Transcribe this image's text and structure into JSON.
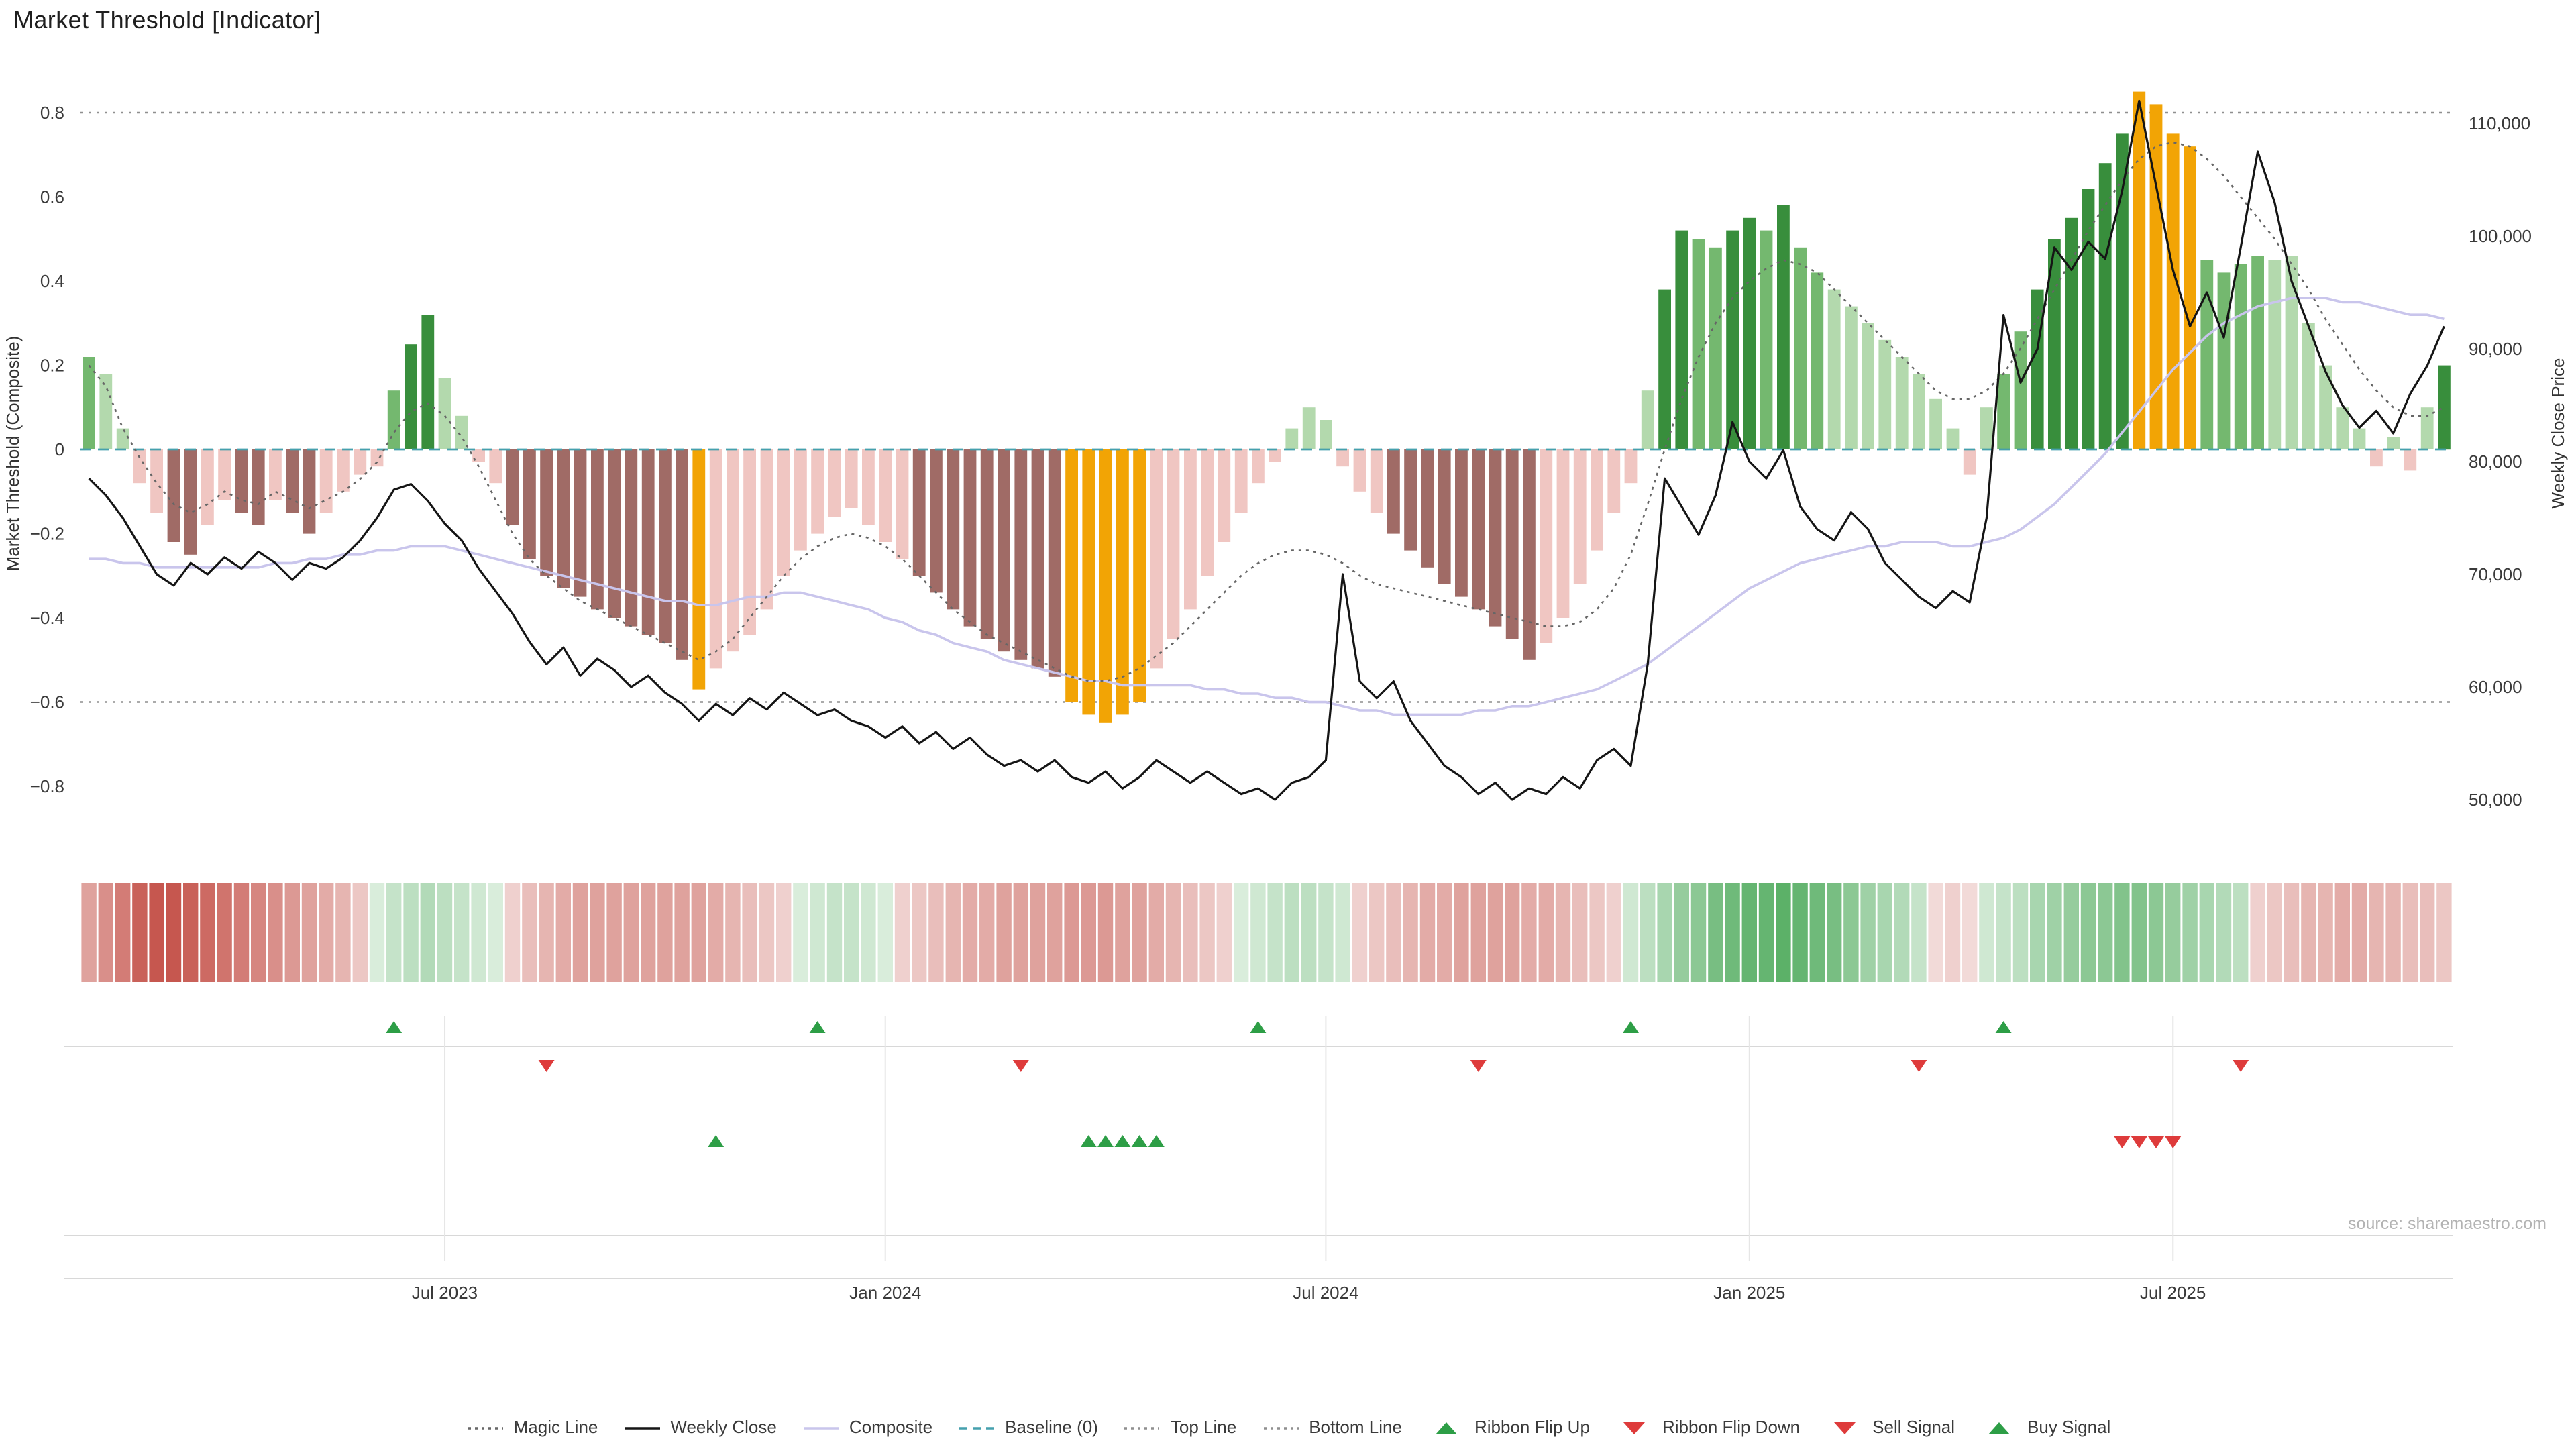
{
  "title": "Market Threshold [Indicator]",
  "source": "source: sharemaestro.com",
  "axes": {
    "left_title": "Market Threshold (Composite)",
    "right_title": "Weekly Close Price"
  },
  "colors": {
    "palette": {
      "G1": "#b3d9ad",
      "G2": "#74b86f",
      "G3": "#388e3c",
      "P1": "#f0c6c2",
      "P2": "#a06b66",
      "O": "#f2a405"
    },
    "weekly_close": "#151515",
    "composite": "#c9c5ec",
    "magic_line": "#666666",
    "baseline": "#45a0ad",
    "ref_line": "#8f8f8f",
    "grid": "#d8d8d8",
    "grid_light": "#e6e6e6",
    "signal_green": "#2d9e46",
    "signal_red": "#de3b3b",
    "ribbon_red": "#c0453c",
    "ribbon_green": "#3fa34d"
  },
  "legend": [
    {
      "label": "Magic Line",
      "marker": "dotted",
      "color": "#666666"
    },
    {
      "label": "Weekly Close",
      "marker": "solid",
      "color": "#151515"
    },
    {
      "label": "Composite",
      "marker": "solid",
      "color": "#c9c5ec"
    },
    {
      "label": "Baseline (0)",
      "marker": "dashed",
      "color": "#45a0ad"
    },
    {
      "label": "Top Line",
      "marker": "dotted",
      "color": "#8f8f8f"
    },
    {
      "label": "Bottom Line",
      "marker": "dotted",
      "color": "#8f8f8f"
    },
    {
      "label": "Ribbon Flip Up",
      "marker": "triangle-up",
      "color": "#2d9e46"
    },
    {
      "label": "Ribbon Flip Down",
      "marker": "triangle-down",
      "color": "#de3b3b"
    },
    {
      "label": "Sell Signal",
      "marker": "triangle-down",
      "color": "#de3b3b"
    },
    {
      "label": "Buy Signal",
      "marker": "triangle-up",
      "color": "#2d9e46"
    }
  ],
  "chart_data": {
    "type": "combo-bar-line",
    "title": "Market Threshold [Indicator]",
    "left_axis": {
      "title": "Market Threshold (Composite)",
      "range": [
        -0.9,
        0.94
      ]
    },
    "right_axis": {
      "title": "Weekly Close Price",
      "range": [
        48000,
        113000
      ]
    },
    "left_ticks": [
      {
        "v": 0.8,
        "label": "0.8"
      },
      {
        "v": 0.6,
        "label": "0.6"
      },
      {
        "v": 0.4,
        "label": "0.4"
      },
      {
        "v": 0.2,
        "label": "0.2"
      },
      {
        "v": 0.0,
        "label": "0"
      },
      {
        "v": -0.2,
        "label": "−0.2"
      },
      {
        "v": -0.4,
        "label": "−0.4"
      },
      {
        "v": -0.6,
        "label": "−0.6"
      },
      {
        "v": -0.8,
        "label": "−0.8"
      }
    ],
    "right_ticks": [
      {
        "v": 110000,
        "label": "110,000"
      },
      {
        "v": 100000,
        "label": "100,000"
      },
      {
        "v": 90000,
        "label": "90,000"
      },
      {
        "v": 80000,
        "label": "80,000"
      },
      {
        "v": 70000,
        "label": "70,000"
      },
      {
        "v": 60000,
        "label": "60,000"
      },
      {
        "v": 50000,
        "label": "50,000"
      }
    ],
    "x_ticks": [
      {
        "i": 21,
        "label": "Jul 2023"
      },
      {
        "i": 47,
        "label": "Jan 2024"
      },
      {
        "i": 73,
        "label": "Jul 2024"
      },
      {
        "i": 98,
        "label": "Jan 2025"
      },
      {
        "i": 123,
        "label": "Jul 2025"
      }
    ],
    "reference_lines": {
      "top_line": 0.8,
      "bottom_line": -0.6,
      "baseline": 0
    },
    "threshold_bars": {
      "values": [
        0.22,
        0.18,
        0.05,
        -0.08,
        -0.15,
        -0.22,
        -0.25,
        -0.18,
        -0.12,
        -0.15,
        -0.18,
        -0.12,
        -0.15,
        -0.2,
        -0.15,
        -0.1,
        -0.06,
        -0.04,
        0.14,
        0.25,
        0.32,
        0.17,
        0.08,
        -0.03,
        -0.08,
        -0.18,
        -0.26,
        -0.3,
        -0.33,
        -0.35,
        -0.38,
        -0.4,
        -0.42,
        -0.44,
        -0.46,
        -0.5,
        -0.57,
        -0.52,
        -0.48,
        -0.44,
        -0.38,
        -0.3,
        -0.24,
        -0.2,
        -0.16,
        -0.14,
        -0.18,
        -0.22,
        -0.26,
        -0.3,
        -0.34,
        -0.38,
        -0.42,
        -0.45,
        -0.48,
        -0.5,
        -0.52,
        -0.54,
        -0.6,
        -0.63,
        -0.65,
        -0.63,
        -0.6,
        -0.52,
        -0.45,
        -0.38,
        -0.3,
        -0.22,
        -0.15,
        -0.08,
        -0.03,
        0.05,
        0.1,
        0.07,
        -0.04,
        -0.1,
        -0.15,
        -0.2,
        -0.24,
        -0.28,
        -0.32,
        -0.35,
        -0.38,
        -0.42,
        -0.45,
        -0.5,
        -0.46,
        -0.4,
        -0.32,
        -0.24,
        -0.15,
        -0.08,
        0.14,
        0.38,
        0.52,
        0.5,
        0.48,
        0.52,
        0.55,
        0.52,
        0.58,
        0.48,
        0.42,
        0.38,
        0.34,
        0.3,
        0.26,
        0.22,
        0.18,
        0.12,
        0.05,
        -0.06,
        0.1,
        0.18,
        0.28,
        0.38,
        0.5,
        0.55,
        0.62,
        0.68,
        0.75,
        0.85,
        0.82,
        0.75,
        0.72,
        0.45,
        0.42,
        0.44,
        0.46,
        0.45,
        0.46,
        0.3,
        0.2,
        0.1,
        0.05,
        -0.04,
        0.03,
        -0.05,
        0.1,
        0.2
      ],
      "colors": [
        "G2",
        "G1",
        "G1",
        "P1",
        "P1",
        "P2",
        "P2",
        "P1",
        "P1",
        "P2",
        "P2",
        "P1",
        "P2",
        "P2",
        "P1",
        "P1",
        "P1",
        "P1",
        "G2",
        "G3",
        "G3",
        "G1",
        "G1",
        "P1",
        "P1",
        "P2",
        "P2",
        "P2",
        "P2",
        "P2",
        "P2",
        "P2",
        "P2",
        "P2",
        "P2",
        "P2",
        "O",
        "P1",
        "P1",
        "P1",
        "P1",
        "P1",
        "P1",
        "P1",
        "P1",
        "P1",
        "P1",
        "P1",
        "P1",
        "P2",
        "P2",
        "P2",
        "P2",
        "P2",
        "P2",
        "P2",
        "P2",
        "P2",
        "O",
        "O",
        "O",
        "O",
        "O",
        "P1",
        "P1",
        "P1",
        "P1",
        "P1",
        "P1",
        "P1",
        "P1",
        "G1",
        "G1",
        "G1",
        "P1",
        "P1",
        "P1",
        "P2",
        "P2",
        "P2",
        "P2",
        "P2",
        "P2",
        "P2",
        "P2",
        "P2",
        "P1",
        "P1",
        "P1",
        "P1",
        "P1",
        "P1",
        "G1",
        "G3",
        "G3",
        "G2",
        "G2",
        "G3",
        "G3",
        "G2",
        "G3",
        "G2",
        "G2",
        "G1",
        "G1",
        "G1",
        "G1",
        "G1",
        "G1",
        "G1",
        "G1",
        "P1",
        "G1",
        "G2",
        "G2",
        "G3",
        "G3",
        "G3",
        "G3",
        "G3",
        "G3",
        "O",
        "O",
        "O",
        "O",
        "G2",
        "G2",
        "G2",
        "G2",
        "G1",
        "G1",
        "G1",
        "G1",
        "G1",
        "G1",
        "P1",
        "G1",
        "P1",
        "G1",
        "G3"
      ]
    },
    "weekly_close": [
      78500,
      77000,
      75000,
      72500,
      70000,
      69000,
      71000,
      70000,
      71500,
      70500,
      72000,
      71000,
      69500,
      71000,
      70500,
      71500,
      73000,
      75000,
      77500,
      78000,
      76500,
      74500,
      73000,
      70500,
      68500,
      66500,
      64000,
      62000,
      63500,
      61000,
      62500,
      61500,
      60000,
      61000,
      59500,
      58500,
      57000,
      58500,
      57500,
      59000,
      58000,
      59500,
      58500,
      57500,
      58000,
      57000,
      56500,
      55500,
      56500,
      55000,
      56000,
      54500,
      55500,
      54000,
      53000,
      53500,
      52500,
      53500,
      52000,
      51500,
      52500,
      51000,
      52000,
      53500,
      52500,
      51500,
      52500,
      51500,
      50500,
      51000,
      50000,
      51500,
      52000,
      53500,
      70000,
      60500,
      59000,
      60500,
      57000,
      55000,
      53000,
      52000,
      50500,
      51500,
      50000,
      51000,
      50500,
      52000,
      51000,
      53500,
      54500,
      53000,
      62000,
      78500,
      76000,
      73500,
      77000,
      83500,
      80000,
      78500,
      81000,
      76000,
      74000,
      73000,
      75500,
      74000,
      71000,
      69500,
      68000,
      67000,
      68500,
      67500,
      75000,
      93000,
      87000,
      90000,
      99000,
      97000,
      99500,
      98000,
      104000,
      112000,
      104500,
      97000,
      92000,
      95000,
      91000,
      99000,
      107500,
      103000,
      96000,
      92000,
      88000,
      85000,
      83000,
      84500,
      82500,
      86000,
      88500,
      92000
    ],
    "composite": [
      -0.26,
      -0.26,
      -0.27,
      -0.27,
      -0.28,
      -0.28,
      -0.28,
      -0.28,
      -0.28,
      -0.28,
      -0.28,
      -0.27,
      -0.27,
      -0.26,
      -0.26,
      -0.25,
      -0.25,
      -0.24,
      -0.24,
      -0.23,
      -0.23,
      -0.23,
      -0.24,
      -0.25,
      -0.26,
      -0.27,
      -0.28,
      -0.29,
      -0.3,
      -0.31,
      -0.32,
      -0.33,
      -0.34,
      -0.35,
      -0.36,
      -0.36,
      -0.37,
      -0.37,
      -0.36,
      -0.35,
      -0.35,
      -0.34,
      -0.34,
      -0.35,
      -0.36,
      -0.37,
      -0.38,
      -0.4,
      -0.41,
      -0.43,
      -0.44,
      -0.46,
      -0.47,
      -0.48,
      -0.5,
      -0.51,
      -0.52,
      -0.53,
      -0.54,
      -0.55,
      -0.55,
      -0.56,
      -0.56,
      -0.56,
      -0.56,
      -0.56,
      -0.57,
      -0.57,
      -0.58,
      -0.58,
      -0.59,
      -0.59,
      -0.6,
      -0.6,
      -0.61,
      -0.62,
      -0.62,
      -0.63,
      -0.63,
      -0.63,
      -0.63,
      -0.63,
      -0.62,
      -0.62,
      -0.61,
      -0.61,
      -0.6,
      -0.59,
      -0.58,
      -0.57,
      -0.55,
      -0.53,
      -0.51,
      -0.48,
      -0.45,
      -0.42,
      -0.39,
      -0.36,
      -0.33,
      -0.31,
      -0.29,
      -0.27,
      -0.26,
      -0.25,
      -0.24,
      -0.23,
      -0.23,
      -0.22,
      -0.22,
      -0.22,
      -0.23,
      -0.23,
      -0.22,
      -0.21,
      -0.19,
      -0.16,
      -0.13,
      -0.09,
      -0.05,
      -0.01,
      0.04,
      0.09,
      0.14,
      0.19,
      0.23,
      0.27,
      0.3,
      0.32,
      0.34,
      0.35,
      0.36,
      0.36,
      0.36,
      0.35,
      0.35,
      0.34,
      0.33,
      0.32,
      0.32,
      0.31
    ],
    "magic_line": [
      0.2,
      0.15,
      0.05,
      -0.02,
      -0.08,
      -0.13,
      -0.15,
      -0.13,
      -0.1,
      -0.12,
      -0.13,
      -0.1,
      -0.12,
      -0.14,
      -0.12,
      -0.1,
      -0.07,
      -0.03,
      0.04,
      0.09,
      0.11,
      0.08,
      0.03,
      -0.04,
      -0.12,
      -0.2,
      -0.26,
      -0.3,
      -0.33,
      -0.36,
      -0.38,
      -0.4,
      -0.42,
      -0.44,
      -0.46,
      -0.48,
      -0.5,
      -0.48,
      -0.45,
      -0.4,
      -0.35,
      -0.3,
      -0.26,
      -0.23,
      -0.21,
      -0.2,
      -0.21,
      -0.23,
      -0.26,
      -0.3,
      -0.34,
      -0.38,
      -0.41,
      -0.44,
      -0.46,
      -0.48,
      -0.5,
      -0.52,
      -0.54,
      -0.55,
      -0.55,
      -0.54,
      -0.52,
      -0.49,
      -0.46,
      -0.42,
      -0.38,
      -0.34,
      -0.3,
      -0.27,
      -0.25,
      -0.24,
      -0.24,
      -0.25,
      -0.27,
      -0.3,
      -0.32,
      -0.33,
      -0.34,
      -0.35,
      -0.36,
      -0.37,
      -0.38,
      -0.39,
      -0.4,
      -0.41,
      -0.42,
      -0.42,
      -0.41,
      -0.38,
      -0.33,
      -0.25,
      -0.13,
      0.0,
      0.12,
      0.22,
      0.3,
      0.36,
      0.4,
      0.43,
      0.45,
      0.44,
      0.42,
      0.38,
      0.34,
      0.3,
      0.26,
      0.22,
      0.18,
      0.14,
      0.12,
      0.12,
      0.14,
      0.18,
      0.24,
      0.31,
      0.38,
      0.45,
      0.52,
      0.58,
      0.64,
      0.69,
      0.72,
      0.73,
      0.72,
      0.69,
      0.65,
      0.6,
      0.55,
      0.5,
      0.44,
      0.38,
      0.31,
      0.25,
      0.19,
      0.14,
      0.1,
      0.08,
      0.08,
      0.1
    ],
    "ribbon": [
      -0.5,
      -0.6,
      -0.7,
      -0.85,
      -0.9,
      -0.9,
      -0.85,
      -0.8,
      -0.75,
      -0.7,
      -0.65,
      -0.6,
      -0.55,
      -0.5,
      -0.45,
      -0.4,
      -0.3,
      0.2,
      0.3,
      0.35,
      0.4,
      0.35,
      0.3,
      0.25,
      0.2,
      -0.25,
      -0.35,
      -0.4,
      -0.45,
      -0.5,
      -0.5,
      -0.5,
      -0.5,
      -0.5,
      -0.5,
      -0.5,
      -0.5,
      -0.45,
      -0.4,
      -0.35,
      -0.3,
      -0.25,
      0.2,
      0.25,
      0.3,
      0.3,
      0.25,
      0.2,
      -0.25,
      -0.3,
      -0.35,
      -0.4,
      -0.45,
      -0.45,
      -0.5,
      -0.5,
      -0.5,
      -0.5,
      -0.55,
      -0.55,
      -0.55,
      -0.5,
      -0.5,
      -0.45,
      -0.4,
      -0.35,
      -0.3,
      -0.25,
      0.2,
      0.25,
      0.3,
      0.35,
      0.35,
      0.3,
      0.25,
      -0.25,
      -0.3,
      -0.35,
      -0.4,
      -0.45,
      -0.45,
      -0.5,
      -0.5,
      -0.5,
      -0.5,
      -0.45,
      -0.45,
      -0.4,
      -0.35,
      -0.3,
      -0.25,
      0.25,
      0.35,
      0.45,
      0.55,
      0.6,
      0.7,
      0.75,
      0.8,
      0.8,
      0.85,
      0.8,
      0.75,
      0.7,
      0.6,
      0.5,
      0.45,
      0.4,
      0.3,
      -0.2,
      -0.25,
      -0.2,
      0.25,
      0.3,
      0.35,
      0.45,
      0.5,
      0.55,
      0.6,
      0.6,
      0.65,
      0.65,
      0.6,
      0.55,
      0.5,
      0.45,
      0.4,
      0.35,
      -0.25,
      -0.3,
      -0.35,
      -0.4,
      -0.4,
      -0.45,
      -0.45,
      -0.4,
      -0.4,
      -0.35,
      -0.35,
      -0.3
    ],
    "signals": {
      "ribbon_flip_up": [
        18,
        43,
        69,
        91,
        113
      ],
      "ribbon_flip_down": [
        27,
        55,
        82,
        108,
        127
      ],
      "buy": [
        37,
        59,
        60,
        61,
        62,
        63
      ],
      "sell": [
        120,
        121,
        122,
        123
      ]
    }
  }
}
